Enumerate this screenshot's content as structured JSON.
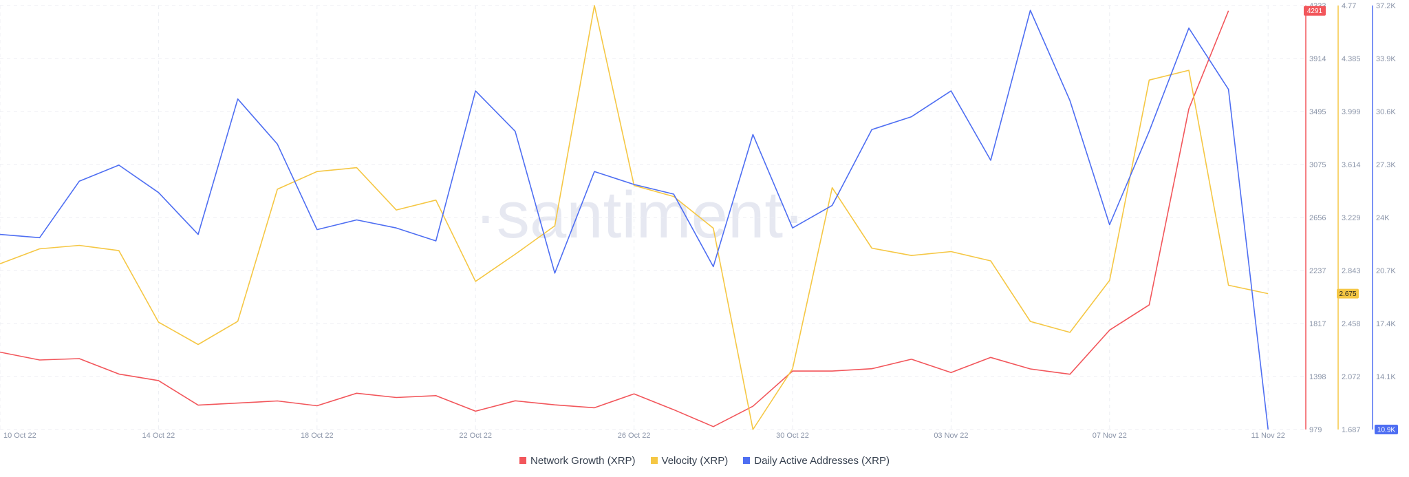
{
  "watermark": "·santiment·",
  "chart_data": {
    "type": "line",
    "x_labels": [
      "10 Oct 22",
      "14 Oct 22",
      "18 Oct 22",
      "22 Oct 22",
      "26 Oct 22",
      "30 Oct 22",
      "03 Nov 22",
      "07 Nov 22",
      "11 Nov 22"
    ],
    "x": [
      "2022-10-10",
      "2022-10-11",
      "2022-10-12",
      "2022-10-13",
      "2022-10-14",
      "2022-10-15",
      "2022-10-16",
      "2022-10-17",
      "2022-10-18",
      "2022-10-19",
      "2022-10-20",
      "2022-10-21",
      "2022-10-22",
      "2022-10-23",
      "2022-10-24",
      "2022-10-25",
      "2022-10-26",
      "2022-10-27",
      "2022-10-28",
      "2022-10-29",
      "2022-10-30",
      "2022-10-31",
      "2022-11-01",
      "2022-11-02",
      "2022-11-03",
      "2022-11-04",
      "2022-11-05",
      "2022-11-06",
      "2022-11-07",
      "2022-11-08",
      "2022-11-09",
      "2022-11-10",
      "2022-11-11"
    ],
    "series": [
      {
        "name": "Network Growth (XRP)",
        "color": "#f2565b",
        "axis": "network",
        "values": [
          1591,
          1529,
          1540,
          1418,
          1366,
          1172,
          1188,
          1205,
          1167,
          1266,
          1232,
          1247,
          1124,
          1206,
          1174,
          1151,
          1261,
          1136,
          1002,
          1163,
          1441,
          1441,
          1460,
          1535,
          1430,
          1549,
          1458,
          1416,
          1765,
          1965,
          3515,
          4291,
          null
        ]
      },
      {
        "name": "Velocity (XRP)",
        "color": "#f5c744",
        "axis": "velocity",
        "values": [
          2.892,
          3.001,
          3.026,
          2.988,
          2.468,
          2.305,
          2.474,
          3.434,
          3.563,
          3.591,
          3.283,
          3.355,
          2.764,
          2.961,
          3.168,
          4.77,
          3.461,
          3.381,
          3.151,
          1.687,
          2.129,
          3.445,
          3.006,
          2.952,
          2.981,
          2.913,
          2.473,
          2.393,
          2.771,
          4.228,
          4.299,
          2.736,
          2.675
        ]
      },
      {
        "name": "Daily Active Addresses (XRP)",
        "color": "#4e6ef2",
        "axis": "daa",
        "values": [
          23000,
          22800,
          26300,
          27300,
          25600,
          23000,
          31400,
          28600,
          23300,
          23900,
          23400,
          22600,
          31900,
          29400,
          20600,
          26900,
          26100,
          25500,
          21000,
          29200,
          23400,
          24800,
          29500,
          30300,
          31900,
          27600,
          36900,
          31300,
          23600,
          29400,
          35800,
          32000,
          10900
        ]
      }
    ],
    "axes": {
      "network": {
        "min": 979,
        "max": 4333,
        "ticks": [
          "979",
          "1398",
          "1817",
          "2237",
          "2656",
          "3075",
          "3495",
          "3914",
          "4333"
        ],
        "color": "#f2565b",
        "badge": "4291"
      },
      "velocity": {
        "min": 1.687,
        "max": 4.77,
        "ticks": [
          "1.687",
          "2.072",
          "2.458",
          "2.843",
          "3.229",
          "3.614",
          "3.999",
          "4.385",
          "4.77"
        ],
        "color": "#f5c744",
        "badge": "2.675"
      },
      "daa": {
        "min": 10900,
        "max": 37200,
        "ticks": [
          "10.9K",
          "14.1K",
          "17.4K",
          "20.7K",
          "24K",
          "27.3K",
          "30.6K",
          "33.9K",
          "37.2K"
        ],
        "color": "#4e6ef2",
        "badge": "10.9K"
      }
    },
    "grid": true
  }
}
